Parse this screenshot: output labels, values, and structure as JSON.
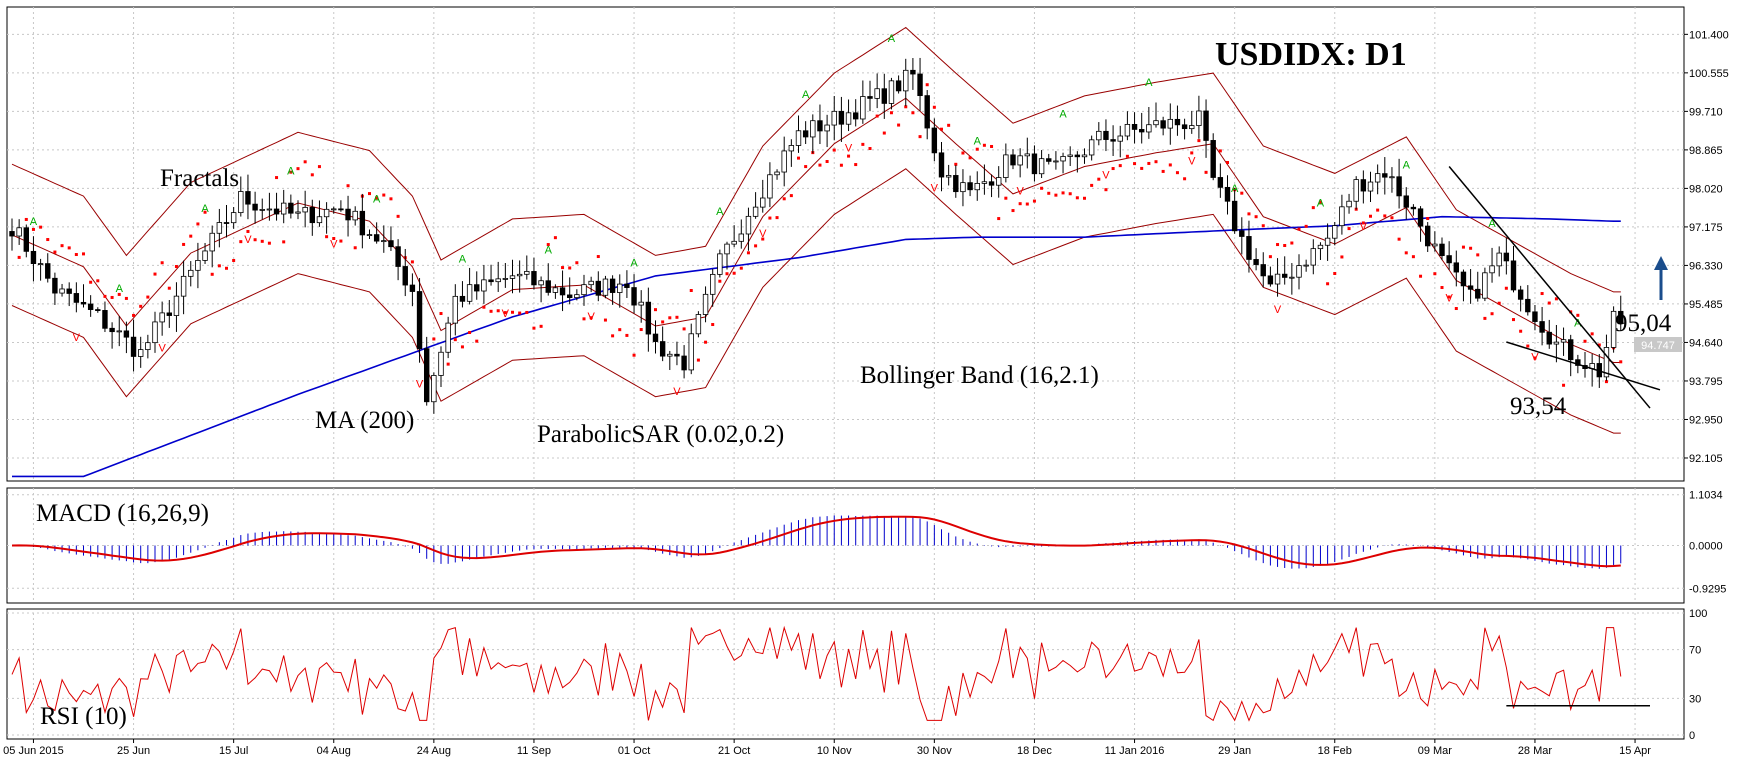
{
  "chart_data": {
    "type": "line",
    "title": "USDIDX: D1",
    "symbol": "USDIDX",
    "timeframe": "D1",
    "last_price_tag": "94.747",
    "colors": {
      "candle_up": "#ffffff",
      "candle_down": "#000000",
      "ma": "#0000cc",
      "bollinger": "#990000",
      "sar": "#ff0000",
      "fractal_up": "#00aa00",
      "fractal_down": "#ff0000",
      "macd_hist": "#0000cc",
      "macd_signal": "#dd0000",
      "rsi": "#dd0000",
      "trendline": "#000000",
      "arrow": "#1a4d8c"
    },
    "main_panel": {
      "ylim": [
        91.6,
        102.0
      ],
      "y_ticks": [
        "101.400",
        "100.555",
        "99.710",
        "98.865",
        "98.020",
        "97.175",
        "96.330",
        "95.485",
        "94.640",
        "93.795",
        "92.950",
        "92.105"
      ],
      "y_tick_values": [
        101.4,
        100.555,
        99.71,
        98.865,
        98.02,
        97.175,
        96.33,
        95.485,
        94.64,
        93.795,
        92.95,
        92.105
      ],
      "x_ticks": [
        "05 Jun 2015",
        "25 Jun",
        "15 Jul",
        "04 Aug",
        "24 Aug",
        "11 Sep",
        "01 Oct",
        "21 Oct",
        "10 Nov",
        "30 Nov",
        "18 Dec",
        "11 Jan 2016",
        "29 Jan",
        "18 Feb",
        "09 Mar",
        "28 Mar",
        "15 Apr"
      ],
      "x_tick_bar_index": [
        3,
        17,
        31,
        45,
        59,
        73,
        87,
        101,
        115,
        129,
        143,
        157,
        171,
        185,
        199,
        213,
        227
      ],
      "close_anchors": {
        "bar_index": [
          0,
          6,
          12,
          18,
          24,
          32,
          40,
          46,
          52,
          56,
          58,
          62,
          70,
          78,
          86,
          90,
          94,
          99,
          104,
          110,
          116,
          122,
          126,
          130,
          134,
          140,
          146,
          152,
          160,
          166,
          168,
          172,
          176,
          184,
          188,
          192,
          196,
          200,
          204,
          208,
          212,
          216,
          220,
          222,
          224
        ],
        "close": [
          97.2,
          95.8,
          95.2,
          94.4,
          95.9,
          97.8,
          97.4,
          97.6,
          96.8,
          95.8,
          93.4,
          95.6,
          96.1,
          95.7,
          96.0,
          94.6,
          94.2,
          96.4,
          97.8,
          99.2,
          99.6,
          100.1,
          100.5,
          98.4,
          97.9,
          98.7,
          98.4,
          99.1,
          99.4,
          99.5,
          98.2,
          96.9,
          95.8,
          96.9,
          98.1,
          98.4,
          97.5,
          96.4,
          95.6,
          96.5,
          95.5,
          94.6,
          94.2,
          94.0,
          95.1
        ]
      },
      "ma200": {
        "bar_index": [
          10,
          40,
          70,
          90,
          110,
          125,
          135,
          150,
          170,
          185,
          200,
          215,
          224
        ],
        "value": [
          91.7,
          93.5,
          95.2,
          96.1,
          96.5,
          96.9,
          96.95,
          96.95,
          97.1,
          97.2,
          97.4,
          97.35,
          97.3
        ]
      },
      "bollinger_mid": {
        "bar_index": [
          0,
          10,
          16,
          25,
          40,
          50,
          56,
          60,
          70,
          80,
          90,
          97,
          105,
          115,
          125,
          132,
          140,
          150,
          160,
          168,
          175,
          185,
          195,
          202,
          210,
          218,
          224
        ],
        "value": [
          97.0,
          96.3,
          95.0,
          96.6,
          97.7,
          97.3,
          96.3,
          94.9,
          95.8,
          95.9,
          95.0,
          95.2,
          97.4,
          99.0,
          100.0,
          99.0,
          97.9,
          98.5,
          98.8,
          99.0,
          97.4,
          96.8,
          97.6,
          96.0,
          95.3,
          94.6,
          94.2
        ]
      },
      "bollinger_width": 1.55,
      "annotations": [
        {
          "label": "Fractals"
        },
        {
          "label": "MA (200)"
        },
        {
          "label": "ParabolicSAR (0.02,0.2)"
        },
        {
          "label": "Bollinger Band (16,2.1)"
        },
        {
          "label": "95,04",
          "price": 95.04
        },
        {
          "label": "93,54",
          "price": 93.54
        }
      ]
    },
    "macd_panel": {
      "label": "MACD (16,26,9)",
      "ylim": [
        -1.25,
        1.25
      ],
      "y_ticks": [
        "1.1034",
        "0.0000",
        "-0.9295"
      ],
      "y_tick_values": [
        1.1034,
        0.0,
        -0.9295
      ]
    },
    "rsi_panel": {
      "label": "RSI (10)",
      "ylim": [
        0,
        100
      ],
      "y_ticks": [
        "100",
        "70",
        "30",
        "0"
      ],
      "y_tick_values": [
        100,
        70,
        30,
        0
      ],
      "support_level": 24
    }
  }
}
